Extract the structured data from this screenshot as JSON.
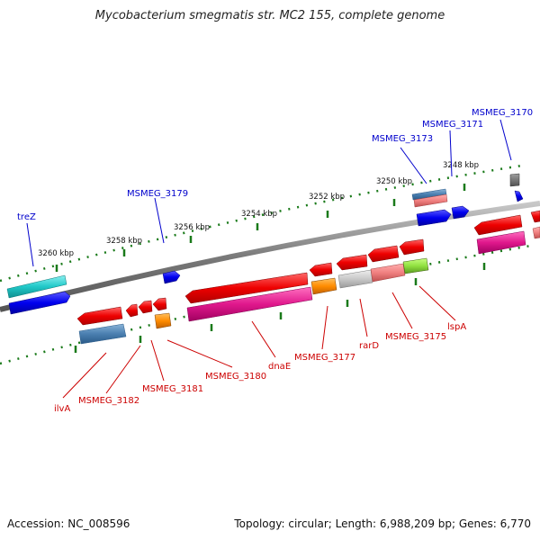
{
  "title": "Mycobacterium smegmatis str. MC2 155, complete genome",
  "footer": {
    "accession": "Accession: NC_008596",
    "topology": "Topology: circular; Length: 6,988,209 bp; Genes: 6,770"
  },
  "ruler_labels": [
    "3260 kbp",
    "3258 kbp",
    "3256 kbp",
    "3254 kbp",
    "3252 kbp",
    "3250 kbp",
    "3248 kbp"
  ],
  "gene_labels_top": [
    "treZ",
    "MSMEG_3179",
    "MSMEG_3173",
    "MSMEG_3171",
    "MSMEG_3170"
  ],
  "gene_labels_bottom": [
    "ilvA",
    "MSMEG_3182",
    "MSMEG_3181",
    "MSMEG_3180",
    "dnaE",
    "MSMEG_3177",
    "rarD",
    "MSMEG_3175",
    "lspA"
  ],
  "colors": {
    "label_top": "#0000cc",
    "label_bottom": "#cc0000",
    "ruler": "#1a7a1a",
    "backbone": "#7a7a7a"
  }
}
